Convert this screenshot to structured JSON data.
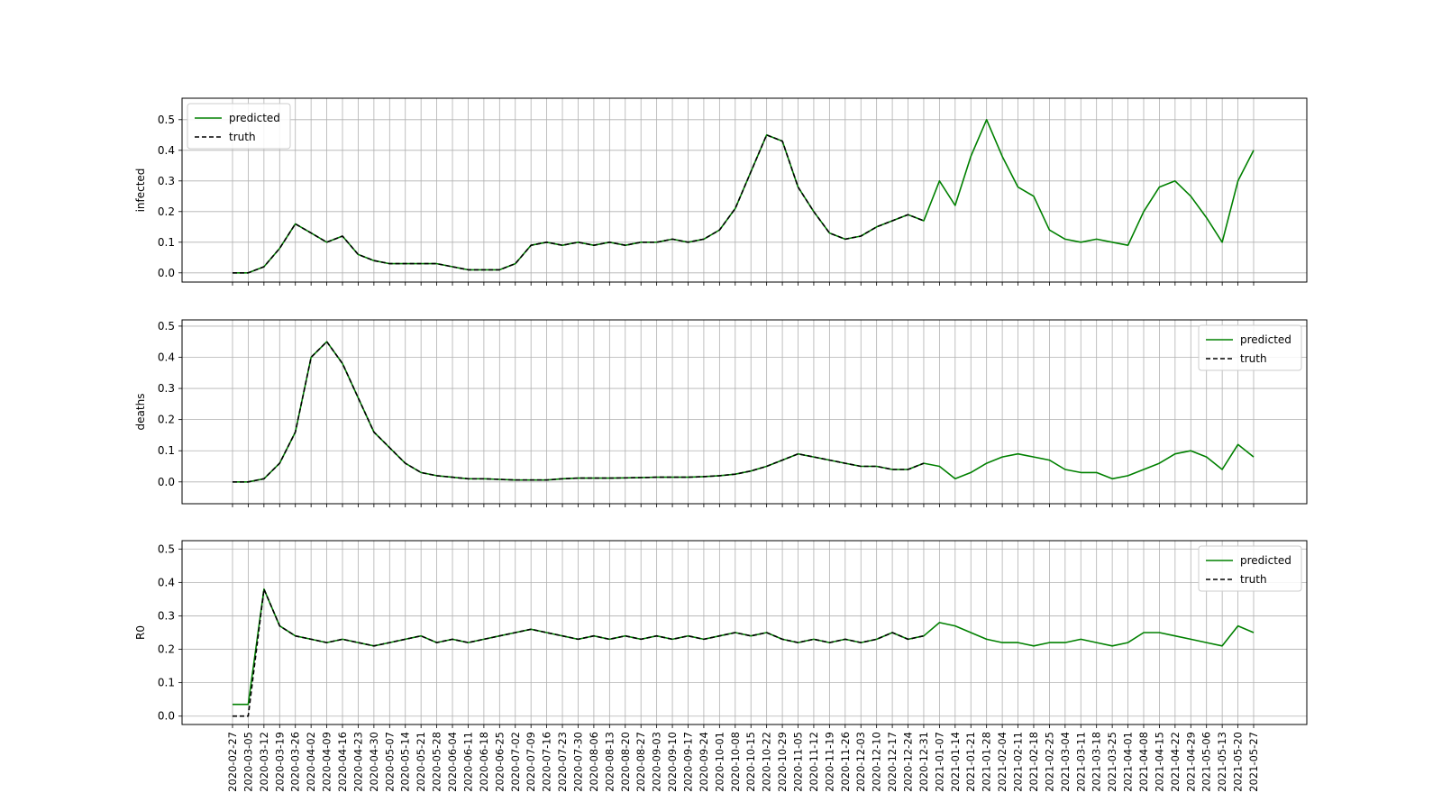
{
  "chart_data": {
    "type": "line",
    "x_start": "2020-02-27",
    "tick_labels": [
      "2020-02-27",
      "2020-03-05",
      "2020-03-12",
      "2020-03-19",
      "2020-03-26",
      "2020-04-02",
      "2020-04-09",
      "2020-04-16",
      "2020-04-23",
      "2020-04-30",
      "2020-05-07",
      "2020-05-14",
      "2020-05-21",
      "2020-05-28",
      "2020-06-04",
      "2020-06-11",
      "2020-06-18",
      "2020-06-25",
      "2020-07-02",
      "2020-07-09",
      "2020-07-16",
      "2020-07-23",
      "2020-07-30",
      "2020-08-06",
      "2020-08-13",
      "2020-08-20",
      "2020-08-27",
      "2020-09-03",
      "2020-09-10",
      "2020-09-17",
      "2020-09-24",
      "2020-10-01",
      "2020-10-08",
      "2020-10-15",
      "2020-10-22",
      "2020-10-29",
      "2020-11-05",
      "2020-11-12",
      "2020-11-19",
      "2020-11-26",
      "2020-12-03",
      "2020-12-10",
      "2020-12-17",
      "2020-12-24",
      "2020-12-31",
      "2021-01-07",
      "2021-01-14",
      "2021-01-21",
      "2021-01-28",
      "2021-02-04",
      "2021-02-11",
      "2021-02-18",
      "2021-02-25",
      "2021-03-04",
      "2021-03-11",
      "2021-03-18",
      "2021-03-25",
      "2021-04-01",
      "2021-04-08",
      "2021-04-15",
      "2021-04-22",
      "2021-04-29",
      "2021-05-06",
      "2021-05-13",
      "2021-05-20",
      "2021-05-27"
    ],
    "truth_end_date": "2020-12-31",
    "panels": [
      {
        "ylabel": "infected",
        "ylim": [
          -0.03,
          0.57
        ],
        "yticks": [
          "0.0",
          "0.1",
          "0.2",
          "0.3",
          "0.4",
          "0.5"
        ],
        "grid": true,
        "legend": "top-left",
        "series": [
          {
            "name": "predicted",
            "color": "#008000",
            "style": "solid",
            "x": [
              "2020-02-27",
              "2020-03-05",
              "2020-03-12",
              "2020-03-19",
              "2020-03-26",
              "2020-04-02",
              "2020-04-09",
              "2020-04-16",
              "2020-04-23",
              "2020-04-30",
              "2020-05-07",
              "2020-05-14",
              "2020-05-21",
              "2020-05-28",
              "2020-06-04",
              "2020-06-11",
              "2020-06-18",
              "2020-06-25",
              "2020-07-02",
              "2020-07-09",
              "2020-07-16",
              "2020-07-23",
              "2020-07-30",
              "2020-08-06",
              "2020-08-13",
              "2020-08-20",
              "2020-08-27",
              "2020-09-03",
              "2020-09-10",
              "2020-09-17",
              "2020-09-24",
              "2020-10-01",
              "2020-10-08",
              "2020-10-15",
              "2020-10-22",
              "2020-10-29",
              "2020-11-05",
              "2020-11-12",
              "2020-11-19",
              "2020-11-26",
              "2020-12-03",
              "2020-12-10",
              "2020-12-17",
              "2020-12-24",
              "2020-12-31",
              "2021-01-07",
              "2021-01-14",
              "2021-01-21",
              "2021-01-28",
              "2021-02-04",
              "2021-02-11",
              "2021-02-18",
              "2021-02-25",
              "2021-03-04",
              "2021-03-11",
              "2021-03-18",
              "2021-03-25",
              "2021-04-01",
              "2021-04-08",
              "2021-04-15",
              "2021-04-22",
              "2021-04-29",
              "2021-05-06",
              "2021-05-13",
              "2021-05-20",
              "2021-05-27"
            ],
            "y": [
              0.0,
              0.0,
              0.02,
              0.08,
              0.16,
              0.13,
              0.1,
              0.12,
              0.06,
              0.04,
              0.03,
              0.03,
              0.03,
              0.03,
              0.02,
              0.01,
              0.01,
              0.01,
              0.03,
              0.09,
              0.1,
              0.09,
              0.1,
              0.09,
              0.1,
              0.09,
              0.1,
              0.1,
              0.11,
              0.1,
              0.11,
              0.14,
              0.21,
              0.33,
              0.45,
              0.43,
              0.28,
              0.2,
              0.13,
              0.11,
              0.12,
              0.15,
              0.17,
              0.19,
              0.17,
              0.3,
              0.22,
              0.38,
              0.5,
              0.38,
              0.28,
              0.25,
              0.14,
              0.11,
              0.1,
              0.11,
              0.1,
              0.09,
              0.2,
              0.28,
              0.3,
              0.25,
              0.18,
              0.1,
              0.3,
              0.4
            ]
          },
          {
            "name": "truth",
            "color": "#000000",
            "style": "dashed",
            "x": [
              "2020-02-27",
              "2020-03-05",
              "2020-03-12",
              "2020-03-19",
              "2020-03-26",
              "2020-04-02",
              "2020-04-09",
              "2020-04-16",
              "2020-04-23",
              "2020-04-30",
              "2020-05-07",
              "2020-05-14",
              "2020-05-21",
              "2020-05-28",
              "2020-06-04",
              "2020-06-11",
              "2020-06-18",
              "2020-06-25",
              "2020-07-02",
              "2020-07-09",
              "2020-07-16",
              "2020-07-23",
              "2020-07-30",
              "2020-08-06",
              "2020-08-13",
              "2020-08-20",
              "2020-08-27",
              "2020-09-03",
              "2020-09-10",
              "2020-09-17",
              "2020-09-24",
              "2020-10-01",
              "2020-10-08",
              "2020-10-15",
              "2020-10-22",
              "2020-10-29",
              "2020-11-05",
              "2020-11-12",
              "2020-11-19",
              "2020-11-26",
              "2020-12-03",
              "2020-12-10",
              "2020-12-17",
              "2020-12-24",
              "2020-12-31"
            ],
            "y": [
              0.0,
              0.0,
              0.02,
              0.08,
              0.16,
              0.13,
              0.1,
              0.12,
              0.06,
              0.04,
              0.03,
              0.03,
              0.03,
              0.03,
              0.02,
              0.01,
              0.01,
              0.01,
              0.03,
              0.09,
              0.1,
              0.09,
              0.1,
              0.09,
              0.1,
              0.09,
              0.1,
              0.1,
              0.11,
              0.1,
              0.11,
              0.14,
              0.21,
              0.33,
              0.45,
              0.43,
              0.28,
              0.2,
              0.13,
              0.11,
              0.12,
              0.15,
              0.17,
              0.19,
              0.17
            ]
          }
        ]
      },
      {
        "ylabel": "deaths",
        "ylim": [
          -0.07,
          0.52
        ],
        "yticks": [
          "0.0",
          "0.1",
          "0.2",
          "0.3",
          "0.4",
          "0.5"
        ],
        "grid": true,
        "legend": "top-right",
        "series": [
          {
            "name": "predicted",
            "color": "#008000",
            "style": "solid",
            "x": [
              "2020-02-27",
              "2020-03-05",
              "2020-03-12",
              "2020-03-19",
              "2020-03-26",
              "2020-04-02",
              "2020-04-09",
              "2020-04-16",
              "2020-04-23",
              "2020-04-30",
              "2020-05-07",
              "2020-05-14",
              "2020-05-21",
              "2020-05-28",
              "2020-06-04",
              "2020-06-11",
              "2020-06-18",
              "2020-06-25",
              "2020-07-02",
              "2020-07-09",
              "2020-07-16",
              "2020-07-23",
              "2020-07-30",
              "2020-08-06",
              "2020-08-13",
              "2020-08-20",
              "2020-08-27",
              "2020-09-03",
              "2020-09-10",
              "2020-09-17",
              "2020-09-24",
              "2020-10-01",
              "2020-10-08",
              "2020-10-15",
              "2020-10-22",
              "2020-10-29",
              "2020-11-05",
              "2020-11-12",
              "2020-11-19",
              "2020-11-26",
              "2020-12-03",
              "2020-12-10",
              "2020-12-17",
              "2020-12-24",
              "2020-12-31",
              "2021-01-07",
              "2021-01-14",
              "2021-01-21",
              "2021-01-28",
              "2021-02-04",
              "2021-02-11",
              "2021-02-18",
              "2021-02-25",
              "2021-03-04",
              "2021-03-11",
              "2021-03-18",
              "2021-03-25",
              "2021-04-01",
              "2021-04-08",
              "2021-04-15",
              "2021-04-22",
              "2021-04-29",
              "2021-05-06",
              "2021-05-13",
              "2021-05-20",
              "2021-05-27"
            ],
            "y": [
              0.0,
              0.0,
              0.01,
              0.06,
              0.16,
              0.4,
              0.45,
              0.38,
              0.27,
              0.16,
              0.11,
              0.06,
              0.03,
              0.02,
              0.015,
              0.01,
              0.01,
              0.008,
              0.006,
              0.006,
              0.006,
              0.01,
              0.012,
              0.012,
              0.012,
              0.013,
              0.014,
              0.015,
              0.015,
              0.015,
              0.017,
              0.02,
              0.025,
              0.035,
              0.05,
              0.07,
              0.09,
              0.08,
              0.07,
              0.06,
              0.05,
              0.05,
              0.04,
              0.04,
              0.06,
              0.05,
              0.01,
              0.03,
              0.06,
              0.08,
              0.09,
              0.08,
              0.07,
              0.04,
              0.03,
              0.03,
              0.01,
              0.02,
              0.04,
              0.06,
              0.09,
              0.1,
              0.08,
              0.04,
              0.12,
              0.08
            ]
          },
          {
            "name": "truth",
            "color": "#000000",
            "style": "dashed",
            "x": [
              "2020-02-27",
              "2020-03-05",
              "2020-03-12",
              "2020-03-19",
              "2020-03-26",
              "2020-04-02",
              "2020-04-09",
              "2020-04-16",
              "2020-04-23",
              "2020-04-30",
              "2020-05-07",
              "2020-05-14",
              "2020-05-21",
              "2020-05-28",
              "2020-06-04",
              "2020-06-11",
              "2020-06-18",
              "2020-06-25",
              "2020-07-02",
              "2020-07-09",
              "2020-07-16",
              "2020-07-23",
              "2020-07-30",
              "2020-08-06",
              "2020-08-13",
              "2020-08-20",
              "2020-08-27",
              "2020-09-03",
              "2020-09-10",
              "2020-09-17",
              "2020-09-24",
              "2020-10-01",
              "2020-10-08",
              "2020-10-15",
              "2020-10-22",
              "2020-10-29",
              "2020-11-05",
              "2020-11-12",
              "2020-11-19",
              "2020-11-26",
              "2020-12-03",
              "2020-12-10",
              "2020-12-17",
              "2020-12-24",
              "2020-12-31"
            ],
            "y": [
              0.0,
              0.0,
              0.01,
              0.06,
              0.16,
              0.4,
              0.45,
              0.38,
              0.27,
              0.16,
              0.11,
              0.06,
              0.03,
              0.02,
              0.015,
              0.01,
              0.01,
              0.008,
              0.006,
              0.006,
              0.006,
              0.01,
              0.012,
              0.012,
              0.012,
              0.013,
              0.014,
              0.015,
              0.015,
              0.015,
              0.017,
              0.02,
              0.025,
              0.035,
              0.05,
              0.07,
              0.09,
              0.08,
              0.07,
              0.06,
              0.05,
              0.05,
              0.04,
              0.04,
              0.06
            ]
          }
        ]
      },
      {
        "ylabel": "R0",
        "ylim": [
          -0.025,
          0.525
        ],
        "yticks": [
          "0.0",
          "0.1",
          "0.2",
          "0.3",
          "0.4",
          "0.5"
        ],
        "grid": true,
        "legend": "top-right",
        "series": [
          {
            "name": "predicted",
            "color": "#008000",
            "style": "solid",
            "x": [
              "2020-02-27",
              "2020-03-05",
              "2020-03-12",
              "2020-03-19",
              "2020-03-26",
              "2020-04-02",
              "2020-04-09",
              "2020-04-16",
              "2020-04-23",
              "2020-04-30",
              "2020-05-07",
              "2020-05-14",
              "2020-05-21",
              "2020-05-28",
              "2020-06-04",
              "2020-06-11",
              "2020-06-18",
              "2020-06-25",
              "2020-07-02",
              "2020-07-09",
              "2020-07-16",
              "2020-07-23",
              "2020-07-30",
              "2020-08-06",
              "2020-08-13",
              "2020-08-20",
              "2020-08-27",
              "2020-09-03",
              "2020-09-10",
              "2020-09-17",
              "2020-09-24",
              "2020-10-01",
              "2020-10-08",
              "2020-10-15",
              "2020-10-22",
              "2020-10-29",
              "2020-11-05",
              "2020-11-12",
              "2020-11-19",
              "2020-11-26",
              "2020-12-03",
              "2020-12-10",
              "2020-12-17",
              "2020-12-24",
              "2020-12-31",
              "2021-01-07",
              "2021-01-14",
              "2021-01-21",
              "2021-01-28",
              "2021-02-04",
              "2021-02-11",
              "2021-02-18",
              "2021-02-25",
              "2021-03-04",
              "2021-03-11",
              "2021-03-18",
              "2021-03-25",
              "2021-04-01",
              "2021-04-08",
              "2021-04-15",
              "2021-04-22",
              "2021-04-29",
              "2021-05-06",
              "2021-05-13",
              "2021-05-20",
              "2021-05-27"
            ],
            "y": [
              0.035,
              0.035,
              0.38,
              0.27,
              0.24,
              0.23,
              0.22,
              0.23,
              0.22,
              0.21,
              0.22,
              0.23,
              0.24,
              0.22,
              0.23,
              0.22,
              0.23,
              0.24,
              0.25,
              0.26,
              0.25,
              0.24,
              0.23,
              0.24,
              0.23,
              0.24,
              0.23,
              0.24,
              0.23,
              0.24,
              0.23,
              0.24,
              0.25,
              0.24,
              0.25,
              0.23,
              0.22,
              0.23,
              0.22,
              0.23,
              0.22,
              0.23,
              0.25,
              0.23,
              0.24,
              0.28,
              0.27,
              0.25,
              0.23,
              0.22,
              0.22,
              0.21,
              0.22,
              0.22,
              0.23,
              0.22,
              0.21,
              0.22,
              0.25,
              0.25,
              0.24,
              0.23,
              0.22,
              0.21,
              0.27,
              0.25
            ]
          },
          {
            "name": "truth",
            "color": "#000000",
            "style": "dashed",
            "x": [
              "2020-02-27",
              "2020-03-05",
              "2020-03-12",
              "2020-03-19",
              "2020-03-26",
              "2020-04-02",
              "2020-04-09",
              "2020-04-16",
              "2020-04-23",
              "2020-04-30",
              "2020-05-07",
              "2020-05-14",
              "2020-05-21",
              "2020-05-28",
              "2020-06-04",
              "2020-06-11",
              "2020-06-18",
              "2020-06-25",
              "2020-07-02",
              "2020-07-09",
              "2020-07-16",
              "2020-07-23",
              "2020-07-30",
              "2020-08-06",
              "2020-08-13",
              "2020-08-20",
              "2020-08-27",
              "2020-09-03",
              "2020-09-10",
              "2020-09-17",
              "2020-09-24",
              "2020-10-01",
              "2020-10-08",
              "2020-10-15",
              "2020-10-22",
              "2020-10-29",
              "2020-11-05",
              "2020-11-12",
              "2020-11-19",
              "2020-11-26",
              "2020-12-03",
              "2020-12-10",
              "2020-12-17",
              "2020-12-24",
              "2020-12-31"
            ],
            "y": [
              0.0,
              0.0,
              0.38,
              0.27,
              0.24,
              0.23,
              0.22,
              0.23,
              0.22,
              0.21,
              0.22,
              0.23,
              0.24,
              0.22,
              0.23,
              0.22,
              0.23,
              0.24,
              0.25,
              0.26,
              0.25,
              0.24,
              0.23,
              0.24,
              0.23,
              0.24,
              0.23,
              0.24,
              0.23,
              0.24,
              0.23,
              0.24,
              0.25,
              0.24,
              0.25,
              0.23,
              0.22,
              0.23,
              0.22,
              0.23,
              0.22,
              0.23,
              0.25,
              0.23,
              0.24
            ]
          }
        ]
      }
    ]
  }
}
